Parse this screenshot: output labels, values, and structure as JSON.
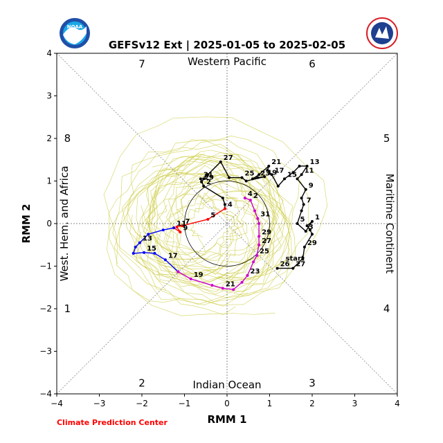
{
  "logos": {
    "left_name": "NOAA",
    "right_text": "NATIONAL WEATHER SERVICE",
    "right_colors": [
      "#d81e27",
      "#1f3f8f",
      "#ffffff"
    ],
    "left_colors": [
      "#1f4fa8",
      "#1aa7e6",
      "#ffffff"
    ]
  },
  "credit": "Climate Prediction Center",
  "credit_color": "#ff0000",
  "chart_data": {
    "type": "scatter",
    "title": "GEFSv12 Ext | 2025-01-05 to 2025-02-05",
    "xlabel": "RMM 1",
    "ylabel": "RMM 2",
    "xlim": [
      -4,
      4
    ],
    "ylim": [
      -4,
      4
    ],
    "xticks": [
      "−4",
      "−3",
      "−2",
      "−1",
      "0",
      "1",
      "2",
      "3",
      "4"
    ],
    "yticks": [
      "−4",
      "−3",
      "−2",
      "−1",
      "0",
      "1",
      "2",
      "3",
      "4"
    ],
    "tick_values": [
      -4,
      -3,
      -2,
      -1,
      0,
      1,
      2,
      3,
      4
    ],
    "phase_labels": [
      {
        "text": "1",
        "x": -3.75,
        "y": -2.0
      },
      {
        "text": "2",
        "x": -2.0,
        "y": -3.75
      },
      {
        "text": "3",
        "x": 2.0,
        "y": -3.75
      },
      {
        "text": "4",
        "x": 3.75,
        "y": -2.0
      },
      {
        "text": "5",
        "x": 3.75,
        "y": 2.0
      },
      {
        "text": "6",
        "x": 2.0,
        "y": 3.75
      },
      {
        "text": "7",
        "x": -2.0,
        "y": 3.75
      },
      {
        "text": "8",
        "x": -3.75,
        "y": 2.0
      }
    ],
    "region_labels": {
      "top": "Western Pacific",
      "bottom": "Indian Ocean",
      "left": "West. Hem. and Africa",
      "right": "Maritime Continent"
    },
    "unit_circle_radius": 1,
    "ensemble_color": "#cccc44",
    "series": [
      {
        "color": "#000000",
        "points": [
          {
            "x": 1.18,
            "y": -1.05,
            "label": "26"
          },
          {
            "x": 1.55,
            "y": -1.05,
            "label": "27"
          },
          {
            "x": 1.78,
            "y": -0.82
          },
          {
            "x": 1.82,
            "y": -0.55,
            "label": "29"
          },
          {
            "x": 2.0,
            "y": -0.25
          },
          {
            "x": 1.95,
            "y": -0.15
          },
          {
            "x": 1.88,
            "y": -0.05
          },
          {
            "x": 2.0,
            "y": 0.05,
            "label": "1"
          },
          {
            "x": 1.85,
            "y": -0.18,
            "label": "3"
          },
          {
            "x": 1.65,
            "y": 0.0,
            "label": "5"
          },
          {
            "x": 1.75,
            "y": 0.3
          },
          {
            "x": 1.8,
            "y": 0.45,
            "label": "7"
          },
          {
            "x": 1.75,
            "y": 0.6
          },
          {
            "x": 1.85,
            "y": 0.8,
            "label": "9"
          },
          {
            "x": 1.65,
            "y": 1.05
          },
          {
            "x": 1.75,
            "y": 1.15,
            "label": "11"
          },
          {
            "x": 1.88,
            "y": 1.35,
            "label": "13"
          },
          {
            "x": 1.7,
            "y": 1.35
          },
          {
            "x": 1.55,
            "y": 1.2
          },
          {
            "x": 1.35,
            "y": 1.05,
            "label": "15"
          },
          {
            "x": 1.2,
            "y": 0.88
          },
          {
            "x": 1.05,
            "y": 1.15,
            "label": "17"
          },
          {
            "x": 0.95,
            "y": 1.25
          },
          {
            "x": 0.98,
            "y": 1.35,
            "label": "21"
          },
          {
            "x": 0.75,
            "y": 1.15
          },
          {
            "x": 0.6,
            "y": 1.05
          },
          {
            "x": 0.72,
            "y": 1.08,
            "label": "23"
          },
          {
            "x": 0.88,
            "y": 1.1,
            "label": "19"
          },
          {
            "x": 0.45,
            "y": 1.0
          },
          {
            "x": 0.35,
            "y": 1.08,
            "label": "25"
          },
          {
            "x": 0.05,
            "y": 1.08
          },
          {
            "x": -0.15,
            "y": 1.45,
            "label": "27"
          },
          {
            "x": -0.45,
            "y": 1.15
          },
          {
            "x": -0.55,
            "y": 1.05
          },
          {
            "x": -0.6,
            "y": 0.98,
            "label": "29"
          },
          {
            "x": -0.62,
            "y": 1.05,
            "label": "31"
          },
          {
            "x": -0.55,
            "y": 0.88,
            "label": "2"
          },
          {
            "x": -0.1,
            "y": 0.6
          },
          {
            "x": -0.05,
            "y": 0.45
          },
          {
            "x": -0.05,
            "y": 0.35,
            "label": "4"
          }
        ]
      },
      {
        "color": "#ff0000",
        "points": [
          {
            "x": -0.05,
            "y": 0.35
          },
          {
            "x": -0.45,
            "y": 0.1,
            "label": "5"
          },
          {
            "x": -1.05,
            "y": -0.05,
            "label": "7"
          },
          {
            "x": -1.18,
            "y": -0.08
          },
          {
            "x": -1.1,
            "y": -0.2,
            "label": "9"
          },
          {
            "x": -1.25,
            "y": -0.1,
            "label": "11"
          }
        ]
      },
      {
        "color": "#0000ff",
        "points": [
          {
            "x": -1.25,
            "y": -0.1
          },
          {
            "x": -1.5,
            "y": -0.15
          },
          {
            "x": -1.85,
            "y": -0.25
          },
          {
            "x": -2.05,
            "y": -0.45,
            "label": "13"
          },
          {
            "x": -2.15,
            "y": -0.55
          },
          {
            "x": -2.2,
            "y": -0.7
          },
          {
            "x": -1.95,
            "y": -0.68,
            "label": "15"
          },
          {
            "x": -1.7,
            "y": -0.7
          },
          {
            "x": -1.45,
            "y": -0.85,
            "label": "17"
          },
          {
            "x": -1.15,
            "y": -1.13
          }
        ]
      },
      {
        "color": "#cc00cc",
        "points": [
          {
            "x": -1.15,
            "y": -1.13
          },
          {
            "x": -0.85,
            "y": -1.3,
            "label": "19"
          },
          {
            "x": -0.35,
            "y": -1.45
          },
          {
            "x": -0.1,
            "y": -1.52,
            "label": "21"
          },
          {
            "x": 0.15,
            "y": -1.55
          },
          {
            "x": 0.35,
            "y": -1.38
          },
          {
            "x": 0.48,
            "y": -1.22,
            "label": "23"
          },
          {
            "x": 0.62,
            "y": -0.9
          },
          {
            "x": 0.7,
            "y": -0.75,
            "label": "25"
          },
          {
            "x": 0.75,
            "y": -0.5,
            "label": "27"
          },
          {
            "x": 0.75,
            "y": -0.3,
            "label": "29"
          },
          {
            "x": 0.75,
            "y": 0.0
          },
          {
            "x": 0.72,
            "y": 0.12,
            "label": "31"
          },
          {
            "x": 0.65,
            "y": 0.3
          },
          {
            "x": 0.55,
            "y": 0.55,
            "label": "2"
          },
          {
            "x": 0.42,
            "y": 0.6,
            "label": "4"
          }
        ]
      }
    ],
    "start_label": "start",
    "start_point": {
      "x": 1.18,
      "y": -1.05
    }
  }
}
